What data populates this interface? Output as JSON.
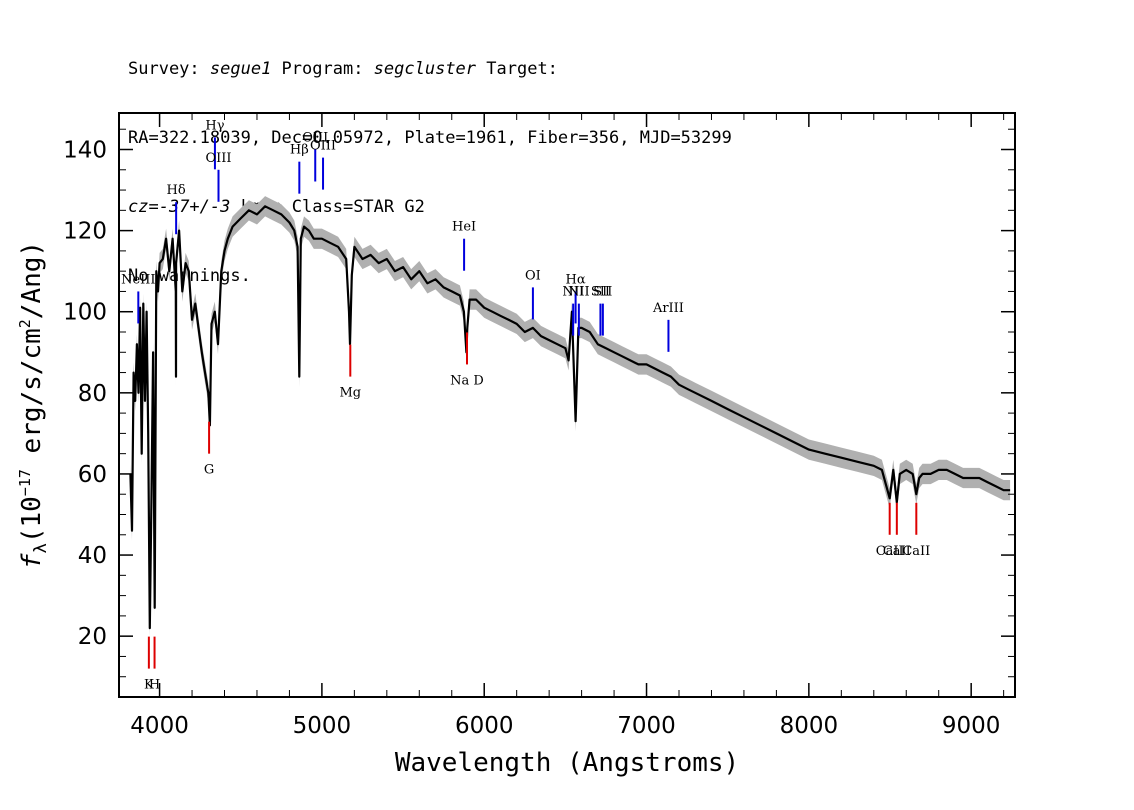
{
  "header": {
    "survey_label": "Survey: ",
    "survey": "segue1",
    "program_label": " Program: ",
    "program": "segcluster",
    "target_label": " Target:",
    "line2": "RA=322.18039, Dec=0.05972, Plate=1961, Fiber=356, MJD=53299",
    "cz_label": "cz",
    "cz_value": "=-37+/-3",
    "cz_units": " km/s Class=STAR G2",
    "line4": "No warnings."
  },
  "chart_data": {
    "type": "line",
    "title": "",
    "xlabel": "Wavelength (Angstroms)",
    "ylabel": "f_λ (10^-17 erg/s/cm^2/Ang)",
    "ylabel_parts": {
      "f": "f",
      "sub": "λ",
      "pre": "(10",
      "exp1": "−17",
      "mid": " erg/s/cm",
      "exp2": "2",
      "post": "/Ang)"
    },
    "xlim": [
      3750,
      9270
    ],
    "ylim": [
      5,
      149
    ],
    "x_ticks": [
      4000,
      5000,
      6000,
      7000,
      8000,
      9000
    ],
    "y_ticks": [
      20,
      40,
      60,
      80,
      100,
      120,
      140
    ],
    "series": [
      {
        "color": "#000000",
        "error_band_color": "#b0b0b0",
        "x": [
          3820,
          3830,
          3840,
          3850,
          3860,
          3870,
          3880,
          3890,
          3900,
          3910,
          3920,
          3930,
          3940,
          3950,
          3960,
          3970,
          3980,
          3990,
          4000,
          4020,
          4040,
          4060,
          4080,
          4100,
          4101,
          4102,
          4120,
          4140,
          4160,
          4180,
          4200,
          4220,
          4240,
          4260,
          4280,
          4300,
          4310,
          4320,
          4340,
          4360,
          4380,
          4400,
          4420,
          4450,
          4500,
          4550,
          4600,
          4650,
          4700,
          4750,
          4800,
          4830,
          4850,
          4861,
          4870,
          4890,
          4920,
          4950,
          5000,
          5050,
          5100,
          5150,
          5167,
          5173,
          5184,
          5200,
          5250,
          5300,
          5350,
          5400,
          5450,
          5500,
          5550,
          5600,
          5650,
          5700,
          5750,
          5800,
          5850,
          5875,
          5890,
          5896,
          5910,
          5950,
          6000,
          6050,
          6100,
          6150,
          6200,
          6250,
          6300,
          6350,
          6400,
          6450,
          6500,
          6520,
          6540,
          6563,
          6580,
          6600,
          6650,
          6700,
          6750,
          6800,
          6850,
          6900,
          6950,
          7000,
          7050,
          7100,
          7150,
          7200,
          7250,
          7300,
          7400,
          7500,
          7600,
          7700,
          7800,
          7900,
          8000,
          8100,
          8200,
          8300,
          8400,
          8450,
          8498,
          8520,
          8542,
          8560,
          8600,
          8640,
          8662,
          8680,
          8700,
          8750,
          8800,
          8850,
          8900,
          8950,
          9000,
          9050,
          9100,
          9150,
          9200,
          9240
        ],
        "y": [
          60,
          46,
          85,
          78,
          92,
          80,
          101,
          65,
          102,
          78,
          100,
          70,
          22,
          55,
          90,
          27,
          110,
          105,
          112,
          113,
          118,
          110,
          118,
          105,
          84,
          112,
          120,
          105,
          112,
          110,
          98,
          102,
          96,
          90,
          85,
          80,
          72,
          97,
          100,
          92,
          110,
          115,
          118,
          121,
          123,
          125,
          124,
          126,
          125,
          124,
          122,
          120,
          116,
          84,
          118,
          121,
          120,
          118,
          118,
          117,
          116,
          113,
          100,
          92,
          109,
          116,
          113,
          114,
          112,
          113,
          110,
          111,
          108,
          110,
          107,
          108,
          106,
          105,
          104,
          100,
          90,
          96,
          103,
          103,
          101,
          100,
          99,
          98,
          97,
          95,
          96,
          94,
          93,
          92,
          91,
          88,
          100,
          73,
          96,
          96,
          95,
          92,
          91,
          90,
          89,
          88,
          87,
          87,
          86,
          85,
          84,
          82,
          81,
          80,
          78,
          76,
          74,
          72,
          70,
          68,
          66,
          65,
          64,
          63,
          62,
          61,
          54,
          61,
          53,
          60,
          61,
          60,
          55,
          59,
          60,
          60,
          61,
          61,
          60,
          59,
          59,
          59,
          58,
          57,
          56,
          56
        ]
      }
    ],
    "annotations_blue": [
      {
        "label": "NeIII",
        "x": 3869,
        "y": 105
      },
      {
        "label": "Hδ",
        "x": 4102,
        "y": 127
      },
      {
        "label": "Hγ",
        "x": 4341,
        "y": 143
      },
      {
        "label": "OIII",
        "x": 4363,
        "y": 135
      },
      {
        "label": "Hβ",
        "x": 4861,
        "y": 137
      },
      {
        "label": "OIII",
        "x": 4959,
        "y": 140
      },
      {
        "label": "OIII",
        "x": 5007,
        "y": 138
      },
      {
        "label": "HeI",
        "x": 5876,
        "y": 118
      },
      {
        "label": "OI",
        "x": 6300,
        "y": 106
      },
      {
        "label": "NII",
        "x": 6548,
        "y": 102
      },
      {
        "label": "Hα",
        "x": 6563,
        "y": 105
      },
      {
        "label": "NII",
        "x": 6583,
        "y": 102
      },
      {
        "label": "SII",
        "x": 6716,
        "y": 102
      },
      {
        "label": "SII",
        "x": 6731,
        "y": 102
      },
      {
        "label": "ArIII",
        "x": 7135,
        "y": 98
      }
    ],
    "annotations_red": [
      {
        "label": "K",
        "x": 3934,
        "y": 12
      },
      {
        "label": "H",
        "x": 3969,
        "y": 12
      },
      {
        "label": "G",
        "x": 4305,
        "y": 65
      },
      {
        "label": "Mg",
        "x": 5175,
        "y": 84
      },
      {
        "label": "Na D",
        "x": 5894,
        "y": 87
      },
      {
        "label": "CaII",
        "x": 8498,
        "y": 45
      },
      {
        "label": "CaII",
        "x": 8542,
        "y": 45
      },
      {
        "label": "CaII",
        "x": 8662,
        "y": 45
      }
    ]
  }
}
